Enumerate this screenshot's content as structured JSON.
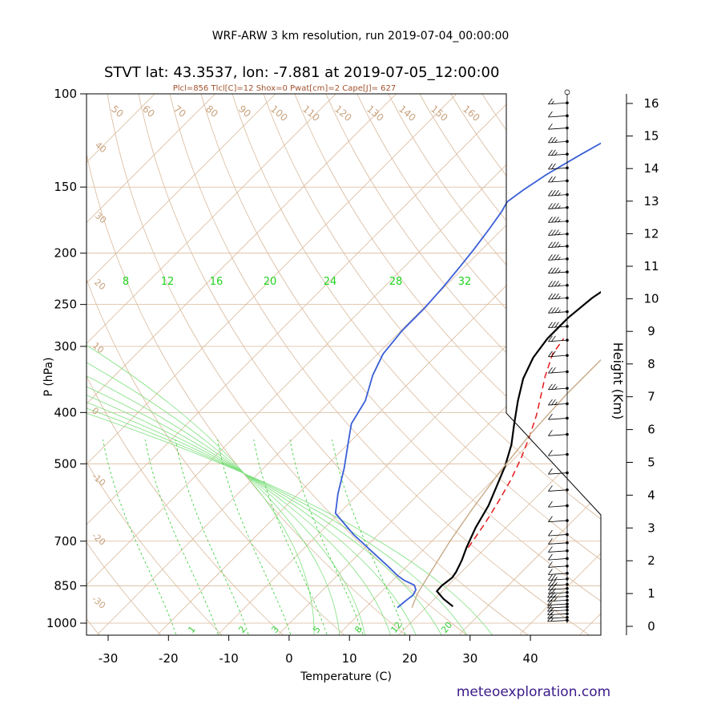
{
  "suptitle": "WRF-ARW 3 km resolution, run 2019-07-04_00:00:00",
  "watermark": "meteoexploration.com",
  "chart_data": {
    "type": "line",
    "subtype": "skew-T log-P sounding",
    "title": "STVT lat: 43.3537, lon: -7.881 at 2019-07-05_12:00:00",
    "subtitle": "Plcl=856 Tlcl[C]=12 Shox=0 Pwat[cm]=2 Cape[J]= 627",
    "xlabel": "Temperature (C)",
    "ylabel": "P (hPa)",
    "y2label": "Height (Km)",
    "x_ticks": [
      -30,
      -20,
      -10,
      0,
      10,
      20,
      30,
      40
    ],
    "xlim": [
      -33,
      50
    ],
    "y_ticks": [
      100,
      150,
      200,
      250,
      300,
      400,
      500,
      700,
      850,
      1000
    ],
    "ylim": [
      1050,
      100
    ],
    "y_scale": "log",
    "height_ticks_km": [
      0,
      1,
      2,
      3,
      4,
      5,
      6,
      7,
      8,
      9,
      10,
      11,
      12,
      13,
      14,
      15,
      16
    ],
    "isotherm_labels": [
      "40",
      "30",
      "20",
      "10",
      "0",
      "-10",
      "-20",
      "-30"
    ],
    "dry_adiabat_labels": [
      "50",
      "60",
      "70",
      "80",
      "90",
      "100",
      "110",
      "120",
      "130",
      "140",
      "150",
      "160"
    ],
    "moist_adiabat_labels": [
      "8",
      "12",
      "16",
      "20",
      "24",
      "28",
      "32"
    ],
    "mixing_ratio_labels": [
      "1",
      "2",
      "3",
      "5",
      "8",
      "12",
      "20"
    ],
    "colors": {
      "temperature": "#000000",
      "dewpoint": "#3a5fd6",
      "parcel": "#e41a1c",
      "dry_adiabat": "#d9b99b",
      "moist_adiabat": "#7fe07f",
      "mixing_ratio": "#33cc33",
      "moist_label": "#1ed41e",
      "reference_curve": "#c8aa88"
    },
    "series": [
      {
        "id": "temperature",
        "points": [
          [
            24.3,
            930
          ],
          [
            21.5,
            900
          ],
          [
            19.1,
            870
          ],
          [
            19.0,
            850
          ],
          [
            19.4,
            820
          ],
          [
            19.1,
            800
          ],
          [
            18.1,
            760
          ],
          [
            16.8,
            720
          ],
          [
            15.0,
            660
          ],
          [
            13.5,
            600
          ],
          [
            11.6,
            550
          ],
          [
            9.7,
            505
          ],
          [
            7.2,
            460
          ],
          [
            4.2,
            420
          ],
          [
            1.0,
            380
          ],
          [
            -1.8,
            345
          ],
          [
            -3.6,
            315
          ],
          [
            -4.4,
            290
          ],
          [
            -4.4,
            265
          ],
          [
            -3.7,
            243
          ],
          [
            -2.4,
            226
          ],
          [
            -0.7,
            210
          ],
          [
            1.2,
            196
          ],
          [
            3.5,
            182
          ],
          [
            6.0,
            169
          ],
          [
            8.4,
            157
          ],
          [
            10.5,
            147
          ],
          [
            12.3,
            138
          ],
          [
            13.7,
            129
          ],
          [
            14.9,
            120
          ],
          [
            15.9,
            113
          ],
          [
            16.8,
            107
          ],
          [
            17.3,
            104
          ]
        ]
      },
      {
        "id": "dewpoint",
        "points": [
          [
            15.3,
            935
          ],
          [
            15.5,
            910
          ],
          [
            15.8,
            885
          ],
          [
            15.4,
            865
          ],
          [
            14.4,
            848
          ],
          [
            11.9,
            830
          ],
          [
            10.1,
            814
          ],
          [
            6.8,
            780
          ],
          [
            2.6,
            740
          ],
          [
            -4.1,
            680
          ],
          [
            -10.6,
            620
          ],
          [
            -13.4,
            570
          ],
          [
            -16.6,
            510
          ],
          [
            -19.9,
            460
          ],
          [
            -22.8,
            420
          ],
          [
            -24.3,
            380
          ],
          [
            -27.3,
            340
          ],
          [
            -29.1,
            310
          ],
          [
            -29.8,
            280
          ],
          [
            -29.8,
            255
          ],
          [
            -30.2,
            232
          ],
          [
            -30.8,
            212
          ],
          [
            -31.4,
            196
          ],
          [
            -32.2,
            180
          ],
          [
            -33.0,
            167
          ],
          [
            -33.7,
            160
          ],
          [
            -33.0,
            152
          ],
          [
            -31.7,
            142
          ],
          [
            -29.3,
            130
          ],
          [
            -25.9,
            116
          ],
          [
            -21.6,
            104
          ]
        ]
      },
      {
        "id": "parcel",
        "style": "dashed",
        "points": [
          [
            17.1,
            720
          ],
          [
            15.9,
            650
          ],
          [
            14.5,
            590
          ],
          [
            12.9,
            535
          ],
          [
            11.0,
            487
          ],
          [
            8.9,
            445
          ],
          [
            6.5,
            405
          ],
          [
            4.0,
            372
          ],
          [
            1.5,
            342
          ],
          [
            -1.0,
            310
          ],
          [
            -1.7,
            290
          ]
        ]
      },
      {
        "id": "reference_curve",
        "points": [
          [
            17.7,
            935
          ],
          [
            16.3,
            880
          ],
          [
            14.9,
            800
          ],
          [
            13.0,
            700
          ],
          [
            11.4,
            610
          ],
          [
            9.8,
            520
          ],
          [
            8.6,
            440
          ],
          [
            8.0,
            370
          ],
          [
            8.0,
            300
          ],
          [
            8.3,
            230
          ],
          [
            13.3,
            187
          ],
          [
            20.0,
            154
          ],
          [
            28.0,
            124
          ],
          [
            34.2,
            104
          ]
        ]
      }
    ],
    "wind_profile": {
      "position": "right",
      "units": "knots",
      "barbs": [
        [
          988,
          5
        ],
        [
          975,
          5
        ],
        [
          960,
          5
        ],
        [
          945,
          8
        ],
        [
          932,
          10
        ],
        [
          920,
          12
        ],
        [
          905,
          15
        ],
        [
          890,
          17
        ],
        [
          875,
          20
        ],
        [
          860,
          20
        ],
        [
          845,
          18
        ],
        [
          825,
          15
        ],
        [
          805,
          12
        ],
        [
          780,
          10
        ],
        [
          755,
          10
        ],
        [
          730,
          10
        ],
        [
          705,
          10
        ],
        [
          680,
          10
        ],
        [
          640,
          10
        ],
        [
          600,
          10
        ],
        [
          560,
          10
        ],
        [
          520,
          10
        ],
        [
          480,
          10
        ],
        [
          440,
          10
        ],
        [
          410,
          10
        ],
        [
          385,
          15
        ],
        [
          360,
          15
        ],
        [
          335,
          20
        ],
        [
          312,
          20
        ],
        [
          292,
          22
        ],
        [
          275,
          25
        ],
        [
          258,
          25
        ],
        [
          243,
          25
        ],
        [
          230,
          25
        ],
        [
          217,
          25
        ],
        [
          205,
          25
        ],
        [
          194,
          25
        ],
        [
          184,
          25
        ],
        [
          174,
          25
        ],
        [
          164,
          25
        ],
        [
          155,
          25
        ],
        [
          146,
          20
        ],
        [
          138,
          20
        ],
        [
          130,
          15
        ],
        [
          123,
          15
        ],
        [
          116,
          10
        ],
        [
          110,
          10
        ],
        [
          104,
          5
        ]
      ]
    }
  }
}
